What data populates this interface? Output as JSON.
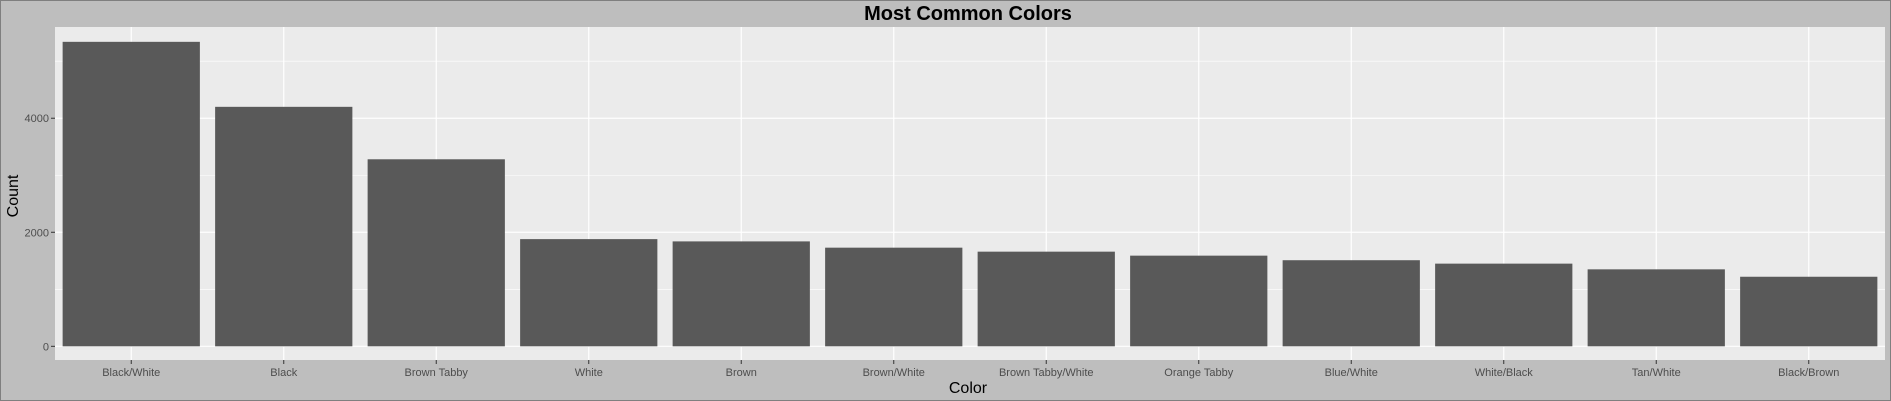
{
  "chart_data": {
    "type": "bar",
    "title": "Most Common Colors",
    "xlabel": "Color",
    "ylabel": "Count",
    "categories": [
      "Black/White",
      "Black",
      "Brown Tabby",
      "White",
      "Brown",
      "Brown/White",
      "Brown Tabby/White",
      "Orange Tabby",
      "Blue/White",
      "White/Black",
      "Tan/White",
      "Black/Brown"
    ],
    "values": [
      5340,
      4200,
      3280,
      1880,
      1840,
      1730,
      1660,
      1590,
      1510,
      1450,
      1350,
      1220
    ],
    "ylim": [
      -240,
      5600
    ],
    "yticks": [
      0,
      2000,
      4000
    ],
    "ytick_labels": [
      "0",
      "2000",
      "4000"
    ],
    "grid": true,
    "legend": "none",
    "colors": {
      "page_background": "#bebebe",
      "panel_background": "#ebebeb",
      "grid": "#ffffff",
      "bar_fill": "#595959",
      "tick_text": "#4d4d4d"
    }
  }
}
